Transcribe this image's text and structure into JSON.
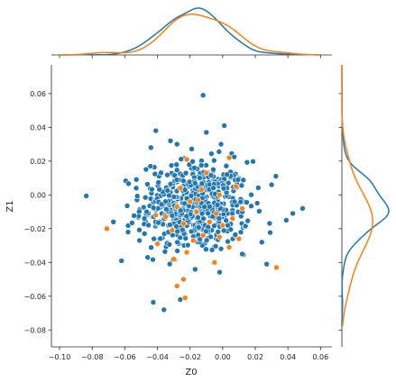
{
  "chart_data": {
    "type": "scatter",
    "kind": "jointplot with marginal KDE",
    "xlabel": "Z0",
    "ylabel": "Z1",
    "xlim": [
      -0.105,
      0.067
    ],
    "ylim": [
      -0.09,
      0.077
    ],
    "xticks": [
      -0.1,
      -0.08,
      -0.06,
      -0.04,
      -0.02,
      0.0,
      0.02,
      0.04,
      0.06
    ],
    "xtick_labels": [
      "−0.10",
      "−0.08",
      "−0.06",
      "−0.04",
      "−0.02",
      "0.00",
      "0.02",
      "0.04",
      "0.06"
    ],
    "yticks": [
      -0.08,
      -0.06,
      -0.04,
      -0.02,
      0.0,
      0.02,
      0.04,
      0.06
    ],
    "ytick_labels": [
      "−0.08",
      "−0.06",
      "−0.04",
      "−0.02",
      "0.00",
      "0.02",
      "0.04",
      "0.06"
    ],
    "grid": false,
    "legend": "none",
    "series": [
      {
        "color": "#1f77b4",
        "cluster": {
          "count": 560,
          "mean": [
            -0.017,
            -0.007
          ],
          "std": [
            0.0165,
            0.0135
          ]
        },
        "outliers": [
          [
            -0.012,
            0.059
          ],
          [
            0.001,
            0.041
          ],
          [
            -0.041,
            0.038
          ],
          [
            -0.01,
            0.037
          ],
          [
            -0.032,
            0.032
          ],
          [
            -0.044,
            0.028
          ],
          [
            -0.028,
            0.03
          ],
          [
            -0.001,
            0.03
          ],
          [
            -0.053,
            0.004
          ],
          [
            -0.058,
            -0.022
          ],
          [
            -0.062,
            -0.039
          ],
          [
            -0.067,
            -0.016
          ],
          [
            -0.048,
            -0.014
          ],
          [
            0.049,
            -0.008
          ],
          [
            0.043,
            -0.011
          ],
          [
            0.039,
            -0.015
          ],
          [
            0.024,
            -0.028
          ],
          [
            0.027,
            -0.041
          ],
          [
            -0.036,
            -0.068
          ],
          [
            -0.046,
            -0.037
          ],
          [
            -0.026,
            -0.062
          ],
          [
            0.012,
            -0.035
          ],
          [
            -0.051,
            -0.027
          ],
          [
            0.03,
            0.006
          ]
        ]
      },
      {
        "color": "#ff7f0e",
        "points": [
          [
            -0.022,
            0.021
          ],
          [
            -0.01,
            0.013
          ],
          [
            0.004,
            0.022
          ],
          [
            0.008,
            0.005
          ],
          [
            0.012,
            -0.008
          ],
          [
            -0.013,
            0.003
          ],
          [
            -0.002,
            0.0
          ],
          [
            -0.02,
            -0.004
          ],
          [
            -0.028,
            -0.007
          ],
          [
            -0.035,
            -0.013
          ],
          [
            -0.041,
            -0.012
          ],
          [
            -0.016,
            -0.01
          ],
          [
            -0.004,
            -0.011
          ],
          [
            0.0,
            -0.018
          ],
          [
            -0.008,
            -0.016
          ],
          [
            -0.024,
            -0.017
          ],
          [
            -0.031,
            -0.021
          ],
          [
            -0.012,
            -0.024
          ],
          [
            -0.018,
            -0.027
          ],
          [
            -0.002,
            -0.025
          ],
          [
            0.01,
            -0.026
          ],
          [
            0.004,
            -0.031
          ],
          [
            -0.022,
            -0.034
          ],
          [
            -0.03,
            -0.038
          ],
          [
            -0.04,
            -0.029
          ],
          [
            -0.071,
            -0.02
          ],
          [
            0.033,
            -0.043
          ],
          [
            -0.024,
            -0.05
          ],
          [
            -0.028,
            -0.054
          ],
          [
            -0.023,
            -0.061
          ],
          [
            -0.005,
            -0.04
          ],
          [
            0.006,
            -0.014
          ],
          [
            -0.015,
            -0.003
          ],
          [
            -0.026,
            0.004
          ]
        ]
      }
    ]
  }
}
